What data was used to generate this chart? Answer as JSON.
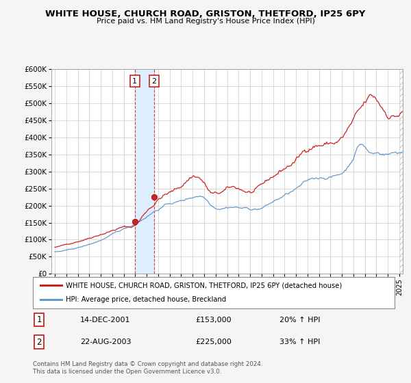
{
  "title": "WHITE HOUSE, CHURCH ROAD, GRISTON, THETFORD, IP25 6PY",
  "subtitle": "Price paid vs. HM Land Registry's House Price Index (HPI)",
  "ylabel_ticks": [
    "£0",
    "£50K",
    "£100K",
    "£150K",
    "£200K",
    "£250K",
    "£300K",
    "£350K",
    "£400K",
    "£450K",
    "£500K",
    "£550K",
    "£600K"
  ],
  "ytick_values": [
    0,
    50000,
    100000,
    150000,
    200000,
    250000,
    300000,
    350000,
    400000,
    450000,
    500000,
    550000,
    600000
  ],
  "xlim": [
    1994.7,
    2025.3
  ],
  "ylim": [
    0,
    600000
  ],
  "sale1_date": 2001.96,
  "sale1_price": 153000,
  "sale1_label": "1",
  "sale1_text": "14-DEC-2001",
  "sale1_amount": "£153,000",
  "sale1_hpi": "20% ↑ HPI",
  "sale2_date": 2003.64,
  "sale2_price": 225000,
  "sale2_label": "2",
  "sale2_text": "22-AUG-2003",
  "sale2_amount": "£225,000",
  "sale2_hpi": "33% ↑ HPI",
  "red_line_color": "#cc2222",
  "blue_line_color": "#6699cc",
  "vline1_fill_color": "#ddeeff",
  "vline2_color": "#cc4444",
  "background_color": "#f5f5f5",
  "plot_bg_color": "#ffffff",
  "legend_label_red": "WHITE HOUSE, CHURCH ROAD, GRISTON, THETFORD, IP25 6PY (detached house)",
  "legend_label_blue": "HPI: Average price, detached house, Breckland",
  "footer": "Contains HM Land Registry data © Crown copyright and database right 2024.\nThis data is licensed under the Open Government Licence v3.0.",
  "seed": 42,
  "n_months": 363,
  "start_year": 1995.0,
  "end_year": 2025.25,
  "red_anchors_x": [
    1995.0,
    1996.0,
    1997.0,
    1998.0,
    1999.0,
    2000.0,
    2001.0,
    2001.96,
    2002.5,
    2003.0,
    2003.64,
    2004.0,
    2005.0,
    2006.0,
    2007.0,
    2008.0,
    2008.5,
    2009.0,
    2010.0,
    2011.0,
    2012.0,
    2013.0,
    2014.0,
    2015.0,
    2016.0,
    2017.0,
    2017.5,
    2018.0,
    2019.0,
    2020.0,
    2021.0,
    2022.0,
    2022.5,
    2023.0,
    2023.5,
    2024.0,
    2024.5,
    2025.0,
    2025.25
  ],
  "red_anchors_y": [
    78000,
    85000,
    97000,
    110000,
    125000,
    138000,
    148000,
    153000,
    175000,
    200000,
    225000,
    240000,
    260000,
    280000,
    315000,
    295000,
    265000,
    255000,
    265000,
    265000,
    255000,
    265000,
    290000,
    315000,
    340000,
    375000,
    390000,
    395000,
    400000,
    415000,
    460000,
    495000,
    510000,
    500000,
    480000,
    465000,
    465000,
    470000,
    475000
  ],
  "blue_anchors_x": [
    1995.0,
    1996.0,
    1997.0,
    1998.0,
    1999.0,
    2000.0,
    2001.0,
    2002.0,
    2003.0,
    2004.0,
    2005.0,
    2006.0,
    2007.0,
    2008.0,
    2008.5,
    2009.0,
    2010.0,
    2011.0,
    2012.0,
    2013.0,
    2014.0,
    2015.0,
    2016.0,
    2017.0,
    2018.0,
    2019.0,
    2020.0,
    2021.0,
    2021.5,
    2022.0,
    2022.3,
    2023.0,
    2024.0,
    2025.0,
    2025.25
  ],
  "blue_anchors_y": [
    65000,
    68000,
    75000,
    84000,
    96000,
    110000,
    124000,
    140000,
    163000,
    185000,
    200000,
    207000,
    218000,
    220000,
    205000,
    195000,
    200000,
    200000,
    195000,
    198000,
    215000,
    232000,
    248000,
    265000,
    275000,
    280000,
    290000,
    340000,
    375000,
    370000,
    355000,
    350000,
    350000,
    355000,
    355000
  ]
}
